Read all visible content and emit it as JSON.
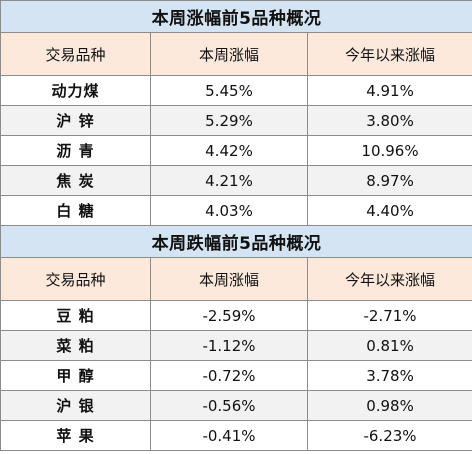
{
  "gainers": {
    "title": "本周涨幅前5品种概况",
    "headers": [
      "交易品种",
      "本周涨幅",
      "今年以来涨幅"
    ],
    "rows": [
      {
        "name": "动力煤",
        "week": "5.45%",
        "ytd": "4.91%"
      },
      {
        "name": "沪 锌",
        "week": "5.29%",
        "ytd": "3.80%"
      },
      {
        "name": "沥 青",
        "week": "4.42%",
        "ytd": "10.96%"
      },
      {
        "name": "焦 炭",
        "week": "4.21%",
        "ytd": "8.97%"
      },
      {
        "name": "白 糖",
        "week": "4.03%",
        "ytd": "4.40%"
      }
    ]
  },
  "losers": {
    "title": "本周跌幅前5品种概况",
    "headers": [
      "交易品种",
      "本周涨幅",
      "今年以来涨幅"
    ],
    "rows": [
      {
        "name": "豆 粕",
        "week": "-2.59%",
        "ytd": "-2.71%"
      },
      {
        "name": "菜 粕",
        "week": "-1.12%",
        "ytd": "0.81%"
      },
      {
        "name": "甲 醇",
        "week": "-0.72%",
        "ytd": "3.78%"
      },
      {
        "name": "沪 银",
        "week": "-0.56%",
        "ytd": "0.98%"
      },
      {
        "name": "苹 果",
        "week": "-0.41%",
        "ytd": "-6.23%"
      }
    ]
  },
  "colors": {
    "title_bg": "#d4e4f2",
    "header_bg": "#fce9dc",
    "alt_row_bg": "#f2f2f2",
    "border": "#8c8c8c"
  }
}
